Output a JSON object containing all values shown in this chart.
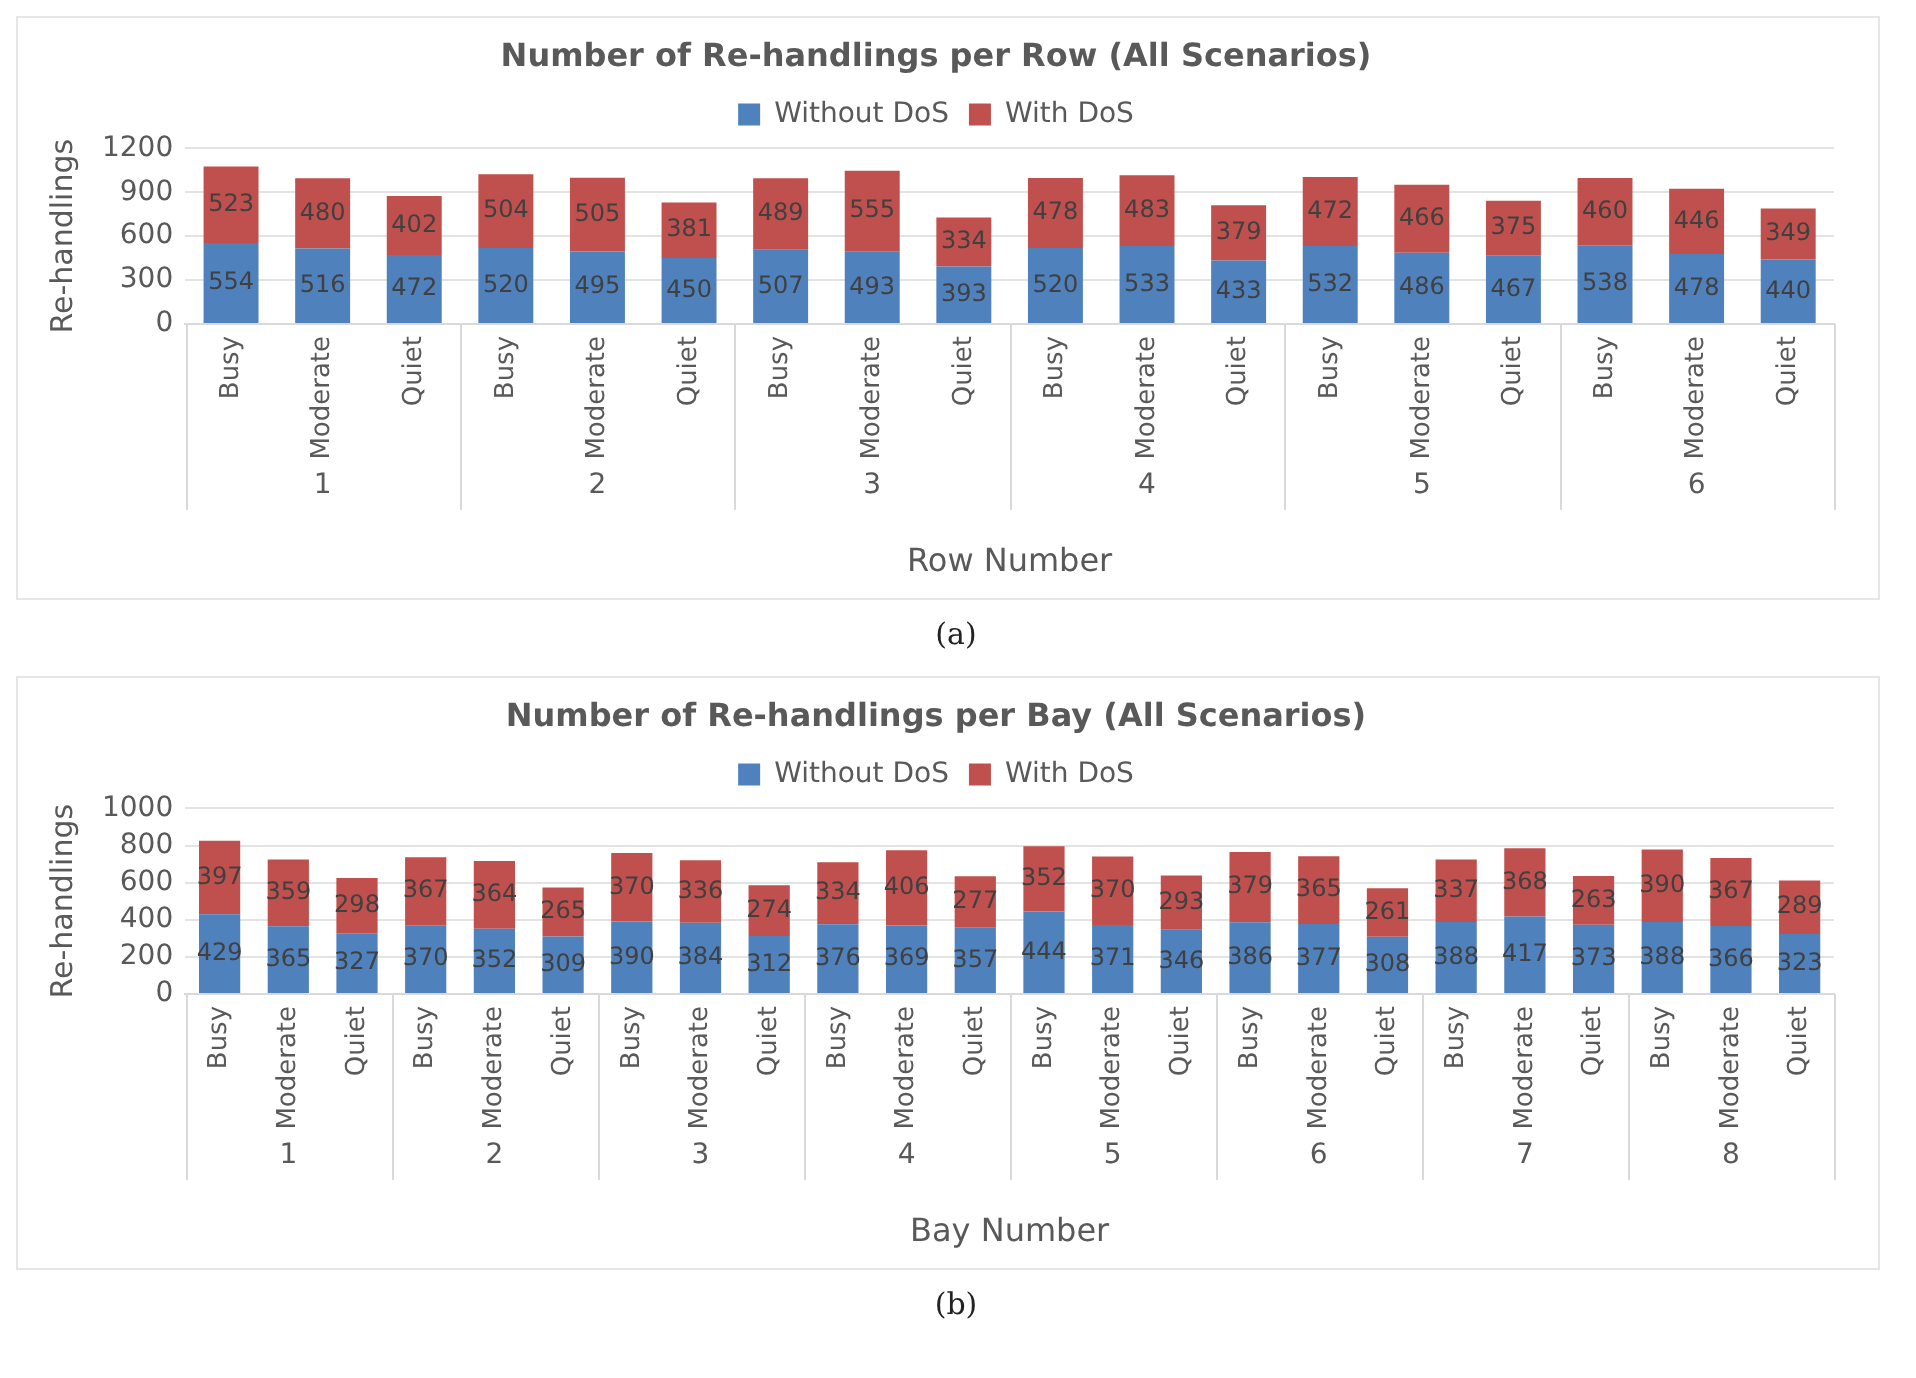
{
  "chart_data": [
    {
      "type": "bar",
      "stacked": true,
      "title": "Number of Re-handlings per Row (All Scenarios)",
      "xlabel": "Row Number",
      "ylabel": "Re-handlings",
      "categories": [
        "Busy",
        "Moderate",
        "Quiet",
        "Busy",
        "Moderate",
        "Quiet",
        "Busy",
        "Moderate",
        "Quiet",
        "Busy",
        "Moderate",
        "Quiet",
        "Busy",
        "Moderate",
        "Quiet",
        "Busy",
        "Moderate",
        "Quiet"
      ],
      "series": [
        {
          "name": "Without DoS",
          "color": "#4f81bd",
          "values": [
            554,
            516,
            472,
            520,
            495,
            450,
            507,
            493,
            393,
            520,
            533,
            433,
            532,
            486,
            467,
            538,
            478,
            440
          ]
        },
        {
          "name": "With DoS",
          "color": "#c0504d",
          "values": [
            523,
            480,
            402,
            504,
            505,
            381,
            489,
            555,
            334,
            478,
            483,
            379,
            472,
            466,
            375,
            460,
            446,
            349
          ]
        }
      ],
      "ylim": [
        0,
        1200
      ],
      "yticks": [
        0,
        300,
        600,
        900,
        1200
      ],
      "grid": "y",
      "legend": "top",
      "data_labels": true,
      "annotations": [
        "1",
        "2",
        "3",
        "4",
        "5",
        "6",
        "(a)"
      ]
    },
    {
      "type": "bar",
      "stacked": true,
      "title": "Number of Re-handlings per Bay (All Scenarios)",
      "xlabel": "Bay Number",
      "ylabel": "Re-handlings",
      "categories": [
        "Busy",
        "Moderate",
        "Quiet",
        "Busy",
        "Moderate",
        "Quiet",
        "Busy",
        "Moderate",
        "Quiet",
        "Busy",
        "Moderate",
        "Quiet",
        "Busy",
        "Moderate",
        "Quiet",
        "Busy",
        "Moderate",
        "Quiet",
        "Busy",
        "Moderate",
        "Quiet",
        "Busy",
        "Moderate",
        "Quiet"
      ],
      "series": [
        {
          "name": "Without DoS",
          "color": "#4f81bd",
          "values": [
            429,
            365,
            327,
            370,
            352,
            309,
            390,
            384,
            312,
            376,
            369,
            357,
            444,
            371,
            346,
            386,
            377,
            308,
            388,
            417,
            373,
            388,
            366,
            323
          ]
        },
        {
          "name": "With DoS",
          "color": "#c0504d",
          "values": [
            397,
            359,
            298,
            367,
            364,
            265,
            370,
            336,
            274,
            334,
            406,
            277,
            352,
            370,
            293,
            379,
            365,
            261,
            337,
            368,
            263,
            390,
            367,
            289
          ]
        }
      ],
      "ylim": [
        0,
        1000
      ],
      "yticks": [
        0,
        200,
        400,
        600,
        800,
        1000
      ],
      "grid": "y",
      "legend": "top",
      "data_labels": true,
      "annotations": [
        "1",
        "2",
        "3",
        "4",
        "5",
        "6",
        "7",
        "8",
        "(b)"
      ]
    }
  ]
}
